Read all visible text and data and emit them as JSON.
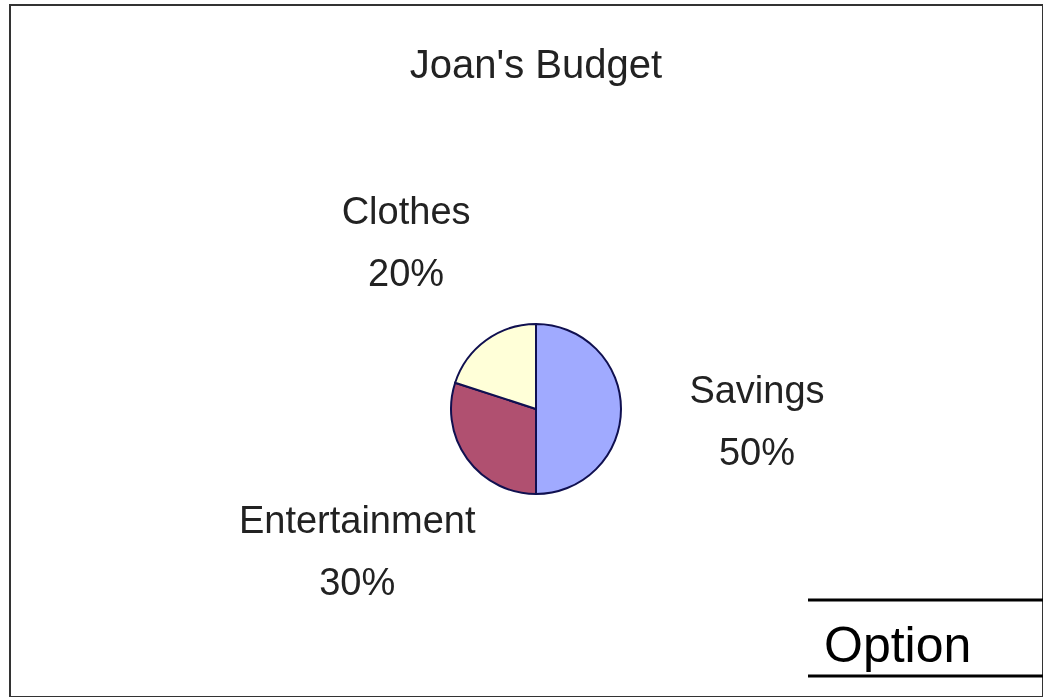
{
  "chart_data": {
    "type": "pie",
    "title": "Joan's Budget",
    "categories": [
      "Savings",
      "Entertainment",
      "Clothes"
    ],
    "values": [
      50,
      30,
      20
    ],
    "value_labels": [
      "50%",
      "30%",
      "20%"
    ],
    "colors": [
      "#a0aaff",
      "#b05070",
      "#ffffd8"
    ],
    "annotations": [
      "Option"
    ]
  }
}
